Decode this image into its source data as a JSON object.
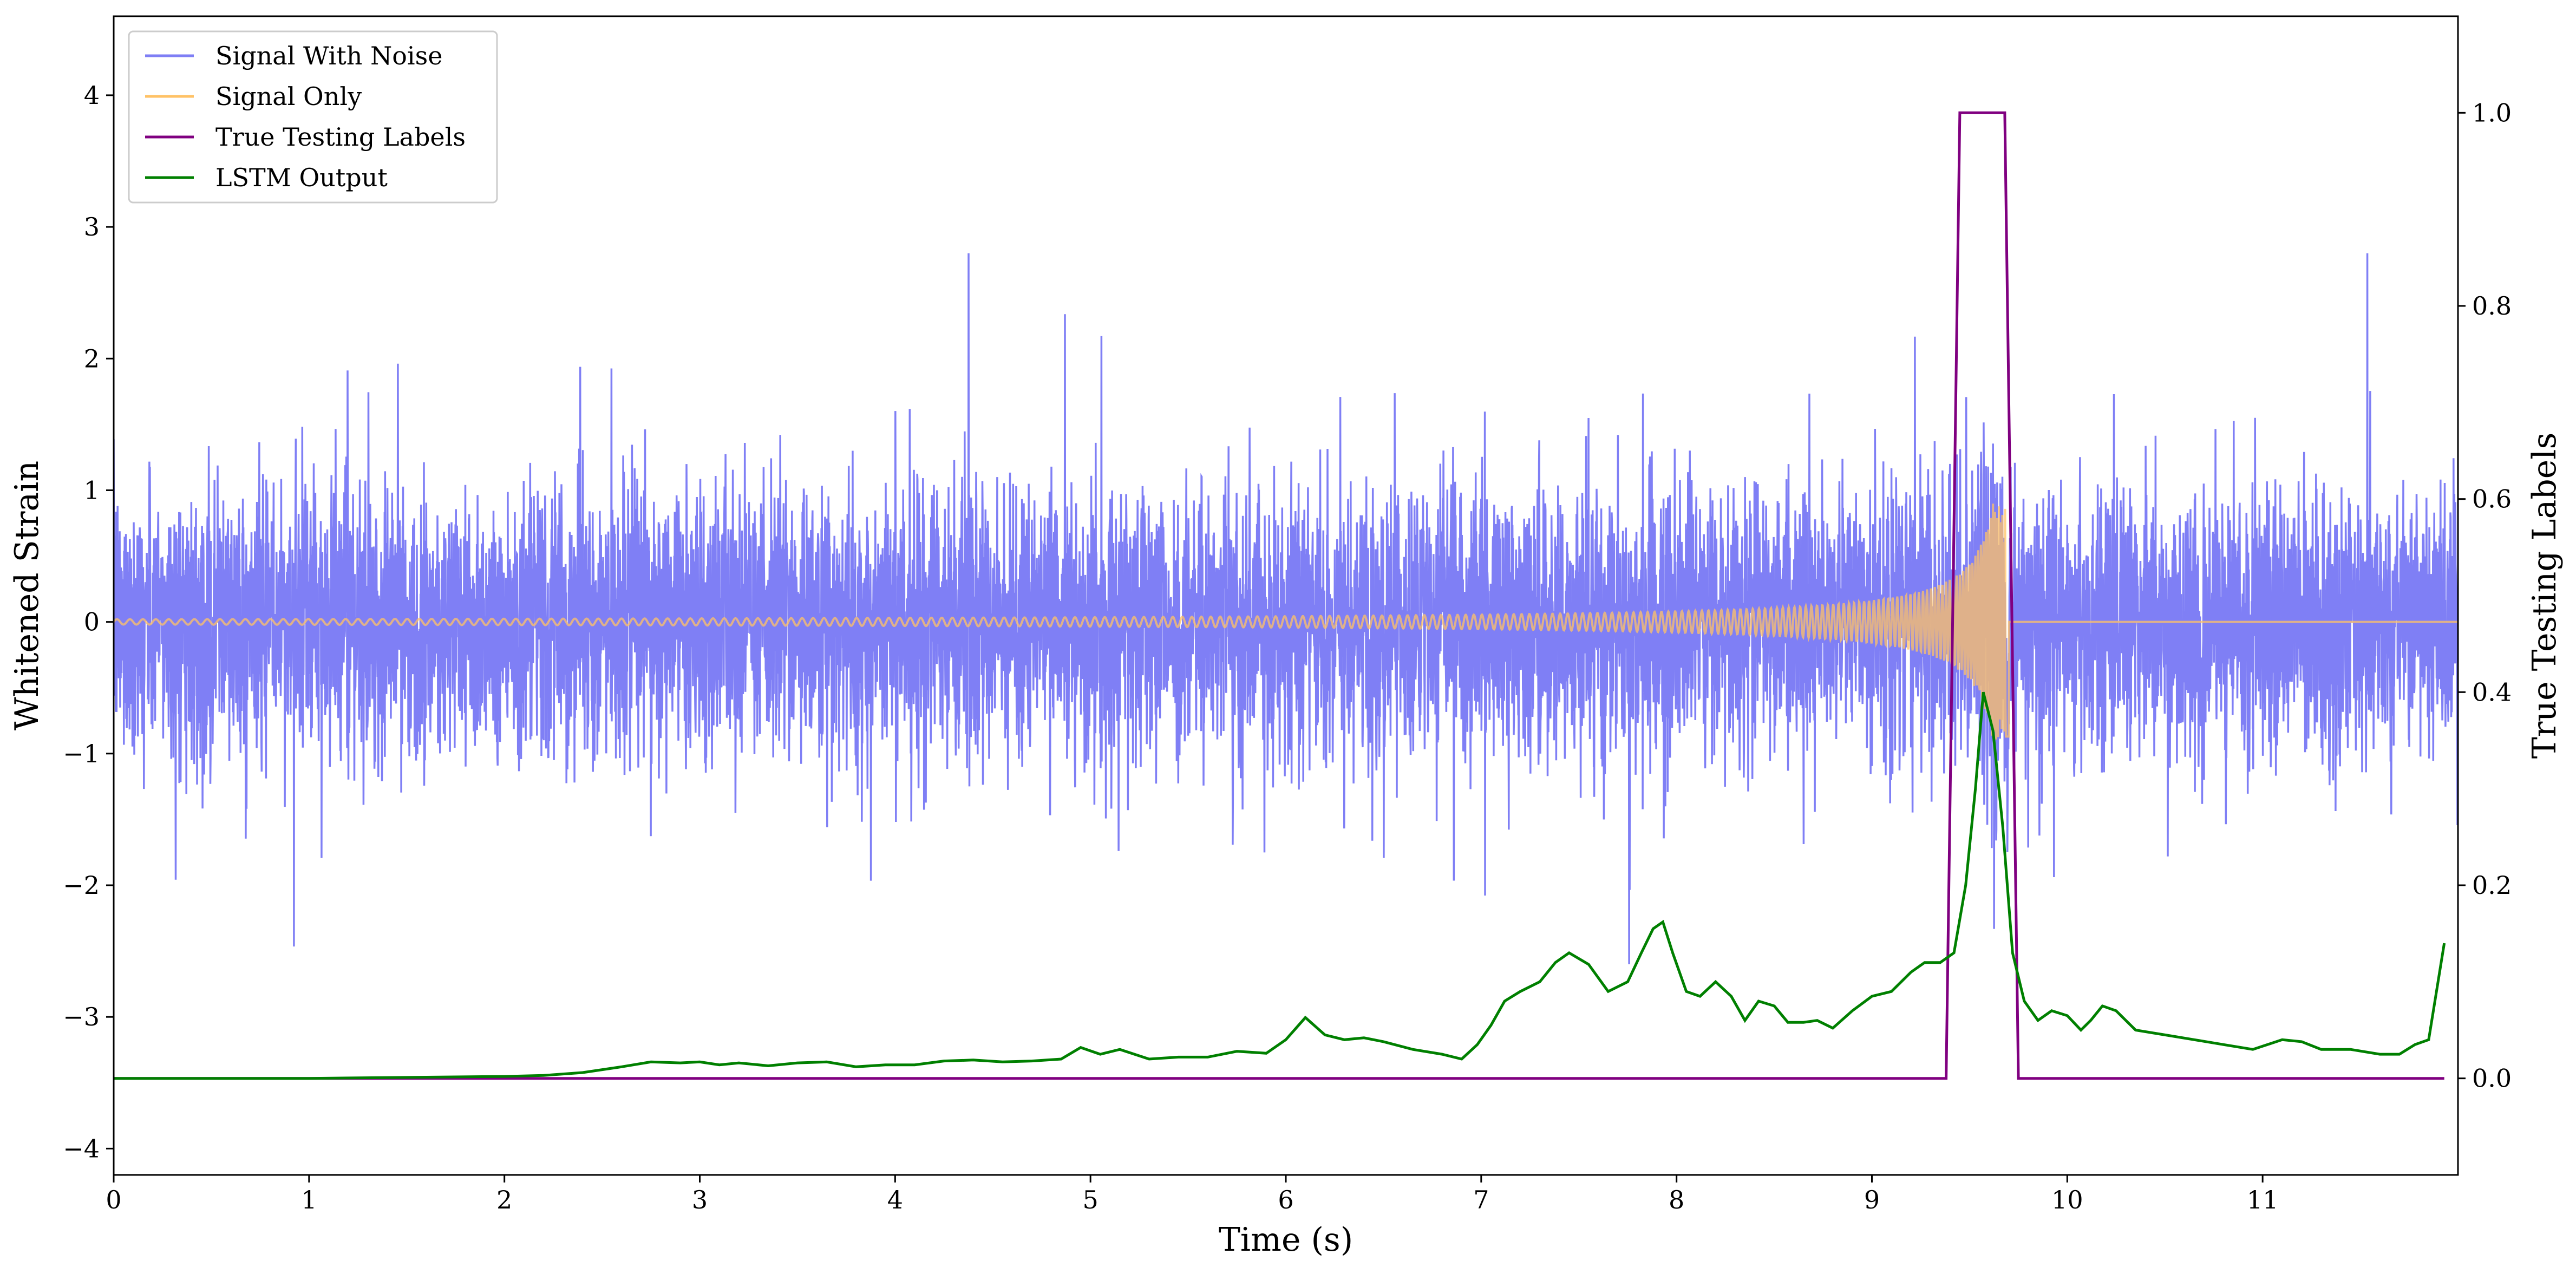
{
  "chart_data": {
    "type": "line",
    "xlabel": "Time (s)",
    "ylabel_left": "Whitened Strain",
    "ylabel_right": "True Testing Labels",
    "xlim": [
      0,
      12
    ],
    "ylim_left": [
      -4.2,
      4.6
    ],
    "ylim_right": [
      -0.1,
      1.1
    ],
    "x_ticks": [
      0,
      1,
      2,
      3,
      4,
      5,
      6,
      7,
      8,
      9,
      10,
      11
    ],
    "x_tick_labels": [
      "0",
      "1",
      "2",
      "3",
      "4",
      "5",
      "6",
      "7",
      "8",
      "9",
      "10",
      "11"
    ],
    "y_left_ticks": [
      -4,
      -3,
      -2,
      -1,
      0,
      1,
      2,
      3,
      4
    ],
    "y_left_tick_labels": [
      "−4",
      "−3",
      "−2",
      "−1",
      "0",
      "1",
      "2",
      "3",
      "4"
    ],
    "y_right_ticks": [
      0.0,
      0.2,
      0.4,
      0.6,
      0.8,
      1.0
    ],
    "y_right_tick_labels": [
      "0.0",
      "0.2",
      "0.4",
      "0.6",
      "0.8",
      "1.0"
    ],
    "grid": false,
    "legend_position": "top-left",
    "colors": {
      "signal_with_noise": "#7f7ff5",
      "signal_only": "#ffc266",
      "true_testing_labels": "#800080",
      "lstm_output": "#008000"
    },
    "series": [
      {
        "name": "Signal With Noise",
        "axis": "left",
        "description": "whitened noisy strain, roughly uniform amplitude about ±1.2 with spikes up to ~2.8",
        "noise_amplitude": 0.5,
        "noise_spike_range": [
          -2.6,
          2.8
        ]
      },
      {
        "name": "Signal Only",
        "axis": "left",
        "description": "chirp signal growing in amplitude and frequency until merger",
        "chirp_start": 0.0,
        "merger_time": 9.7,
        "peak_amplitude": 0.9
      },
      {
        "name": "True Testing Labels",
        "axis": "right",
        "x": [
          0.0,
          9.38,
          9.45,
          9.68,
          9.75,
          11.93
        ],
        "y": [
          0.0,
          0.0,
          1.0,
          1.0,
          0.0,
          0.0
        ]
      },
      {
        "name": "LSTM Output",
        "axis": "right",
        "x": [
          0.0,
          0.5,
          1.0,
          1.5,
          2.0,
          2.2,
          2.4,
          2.6,
          2.75,
          2.9,
          3.0,
          3.1,
          3.2,
          3.35,
          3.5,
          3.65,
          3.8,
          3.95,
          4.1,
          4.25,
          4.4,
          4.55,
          4.7,
          4.85,
          4.95,
          5.05,
          5.15,
          5.3,
          5.45,
          5.6,
          5.75,
          5.9,
          6.0,
          6.1,
          6.2,
          6.3,
          6.4,
          6.5,
          6.65,
          6.8,
          6.9,
          6.98,
          7.05,
          7.12,
          7.2,
          7.3,
          7.38,
          7.45,
          7.55,
          7.65,
          7.75,
          7.82,
          7.88,
          7.93,
          7.98,
          8.05,
          8.12,
          8.2,
          8.28,
          8.35,
          8.42,
          8.5,
          8.57,
          8.65,
          8.72,
          8.8,
          8.9,
          9.0,
          9.1,
          9.2,
          9.27,
          9.35,
          9.42,
          9.48,
          9.53,
          9.57,
          9.62,
          9.67,
          9.72,
          9.78,
          9.85,
          9.92,
          10.0,
          10.07,
          10.12,
          10.18,
          10.25,
          10.35,
          10.5,
          10.65,
          10.8,
          10.95,
          11.1,
          11.2,
          11.3,
          11.45,
          11.6,
          11.7,
          11.78,
          11.85,
          11.93
        ],
        "y": [
          0.0,
          0.0,
          0.0,
          0.001,
          0.002,
          0.003,
          0.006,
          0.012,
          0.017,
          0.016,
          0.017,
          0.014,
          0.016,
          0.013,
          0.016,
          0.017,
          0.012,
          0.014,
          0.014,
          0.018,
          0.019,
          0.017,
          0.018,
          0.02,
          0.032,
          0.025,
          0.03,
          0.02,
          0.022,
          0.022,
          0.028,
          0.026,
          0.04,
          0.063,
          0.045,
          0.04,
          0.042,
          0.038,
          0.03,
          0.025,
          0.02,
          0.035,
          0.055,
          0.08,
          0.09,
          0.1,
          0.12,
          0.13,
          0.118,
          0.09,
          0.1,
          0.13,
          0.155,
          0.162,
          0.13,
          0.09,
          0.085,
          0.1,
          0.085,
          0.06,
          0.08,
          0.075,
          0.058,
          0.058,
          0.06,
          0.052,
          0.07,
          0.085,
          0.09,
          0.11,
          0.12,
          0.12,
          0.13,
          0.2,
          0.3,
          0.4,
          0.36,
          0.26,
          0.13,
          0.08,
          0.06,
          0.07,
          0.065,
          0.05,
          0.06,
          0.075,
          0.07,
          0.05,
          0.045,
          0.04,
          0.035,
          0.03,
          0.04,
          0.038,
          0.03,
          0.03,
          0.025,
          0.025,
          0.035,
          0.04,
          0.14
        ]
      }
    ]
  }
}
